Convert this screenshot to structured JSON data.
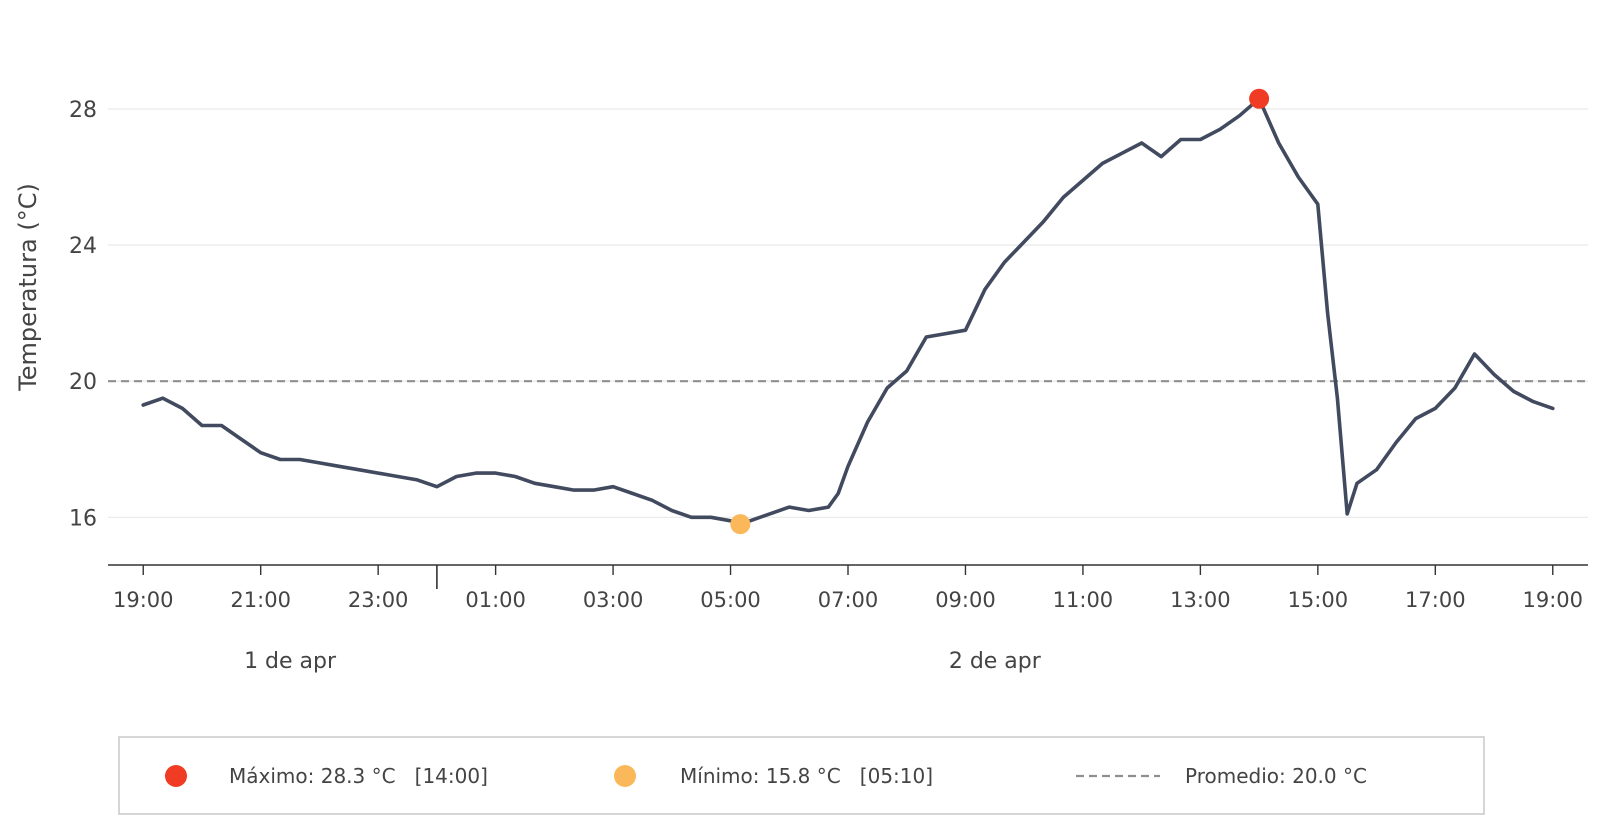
{
  "chart_data": {
    "type": "line",
    "ylabel": "Temperatura (°C)",
    "xlabel": "",
    "ylim": [
      14.6,
      31.2
    ],
    "yticks": [
      16,
      20,
      24,
      28
    ],
    "ytick_labels": [
      "16",
      "20",
      "24",
      "28"
    ],
    "xlim_hours": [
      -0.6,
      24.6
    ],
    "xticks": [
      "19:00",
      "21:00",
      "23:00",
      "01:00",
      "03:00",
      "05:00",
      "07:00",
      "09:00",
      "11:00",
      "13:00",
      "15:00",
      "17:00",
      "19:00"
    ],
    "date_labels": [
      "1 de apr",
      "2 de apr"
    ],
    "grid": "horizontal",
    "legend_position": "bottom",
    "series": [
      {
        "name": "Temperatura",
        "color": "#414a5e",
        "x": [
          "19:00",
          "19:20",
          "19:40",
          "20:00",
          "20:20",
          "20:40",
          "21:00",
          "21:20",
          "21:40",
          "22:00",
          "22:20",
          "22:40",
          "23:00",
          "23:20",
          "23:40",
          "00:00",
          "00:20",
          "00:40",
          "01:00",
          "01:20",
          "01:40",
          "02:00",
          "02:20",
          "02:40",
          "03:00",
          "03:20",
          "03:40",
          "04:00",
          "04:20",
          "04:40",
          "05:00",
          "05:10",
          "05:20",
          "05:40",
          "06:00",
          "06:20",
          "06:40",
          "06:50",
          "07:00",
          "07:20",
          "07:40",
          "08:00",
          "08:20",
          "08:40",
          "09:00",
          "09:20",
          "09:40",
          "10:00",
          "10:20",
          "10:40",
          "11:00",
          "11:20",
          "11:40",
          "12:00",
          "12:20",
          "12:40",
          "13:00",
          "13:20",
          "13:40",
          "14:00",
          "14:20",
          "14:40",
          "15:00",
          "15:10",
          "15:20",
          "15:30",
          "15:40",
          "16:00",
          "16:20",
          "16:40",
          "17:00",
          "17:20",
          "17:40",
          "18:00",
          "18:20",
          "18:40",
          "19:00"
        ],
        "y": [
          19.3,
          19.5,
          19.2,
          18.7,
          18.7,
          18.3,
          17.9,
          17.7,
          17.7,
          17.6,
          17.5,
          17.4,
          17.3,
          17.2,
          17.1,
          16.9,
          17.2,
          17.3,
          17.3,
          17.2,
          17.0,
          16.9,
          16.8,
          16.8,
          16.9,
          16.7,
          16.5,
          16.2,
          16.0,
          16.0,
          15.9,
          15.8,
          15.9,
          16.1,
          16.3,
          16.2,
          16.3,
          16.7,
          17.5,
          18.8,
          19.8,
          20.3,
          21.3,
          21.4,
          21.5,
          22.7,
          23.5,
          24.1,
          24.7,
          25.4,
          25.9,
          26.4,
          26.7,
          27.0,
          26.6,
          27.1,
          27.1,
          27.4,
          27.8,
          28.3,
          27.0,
          26.0,
          25.2,
          22.0,
          19.5,
          16.1,
          17.0,
          17.4,
          18.2,
          18.9,
          19.2,
          19.8,
          20.8,
          20.2,
          19.7,
          19.4,
          19.2
        ]
      }
    ],
    "annotations": {
      "max": {
        "label": "Máximo: 28.3 °C   [14:00]",
        "time": "14:00",
        "value": 28.3,
        "color": "#f03c24"
      },
      "min": {
        "label": "Mínimo: 15.8 °C   [05:10]",
        "time": "05:10",
        "value": 15.8,
        "color": "#fbb85a"
      },
      "mean": {
        "label": "Promedio: 20.0 °C",
        "value": 20.0,
        "color": "#8f8f8f"
      }
    }
  }
}
